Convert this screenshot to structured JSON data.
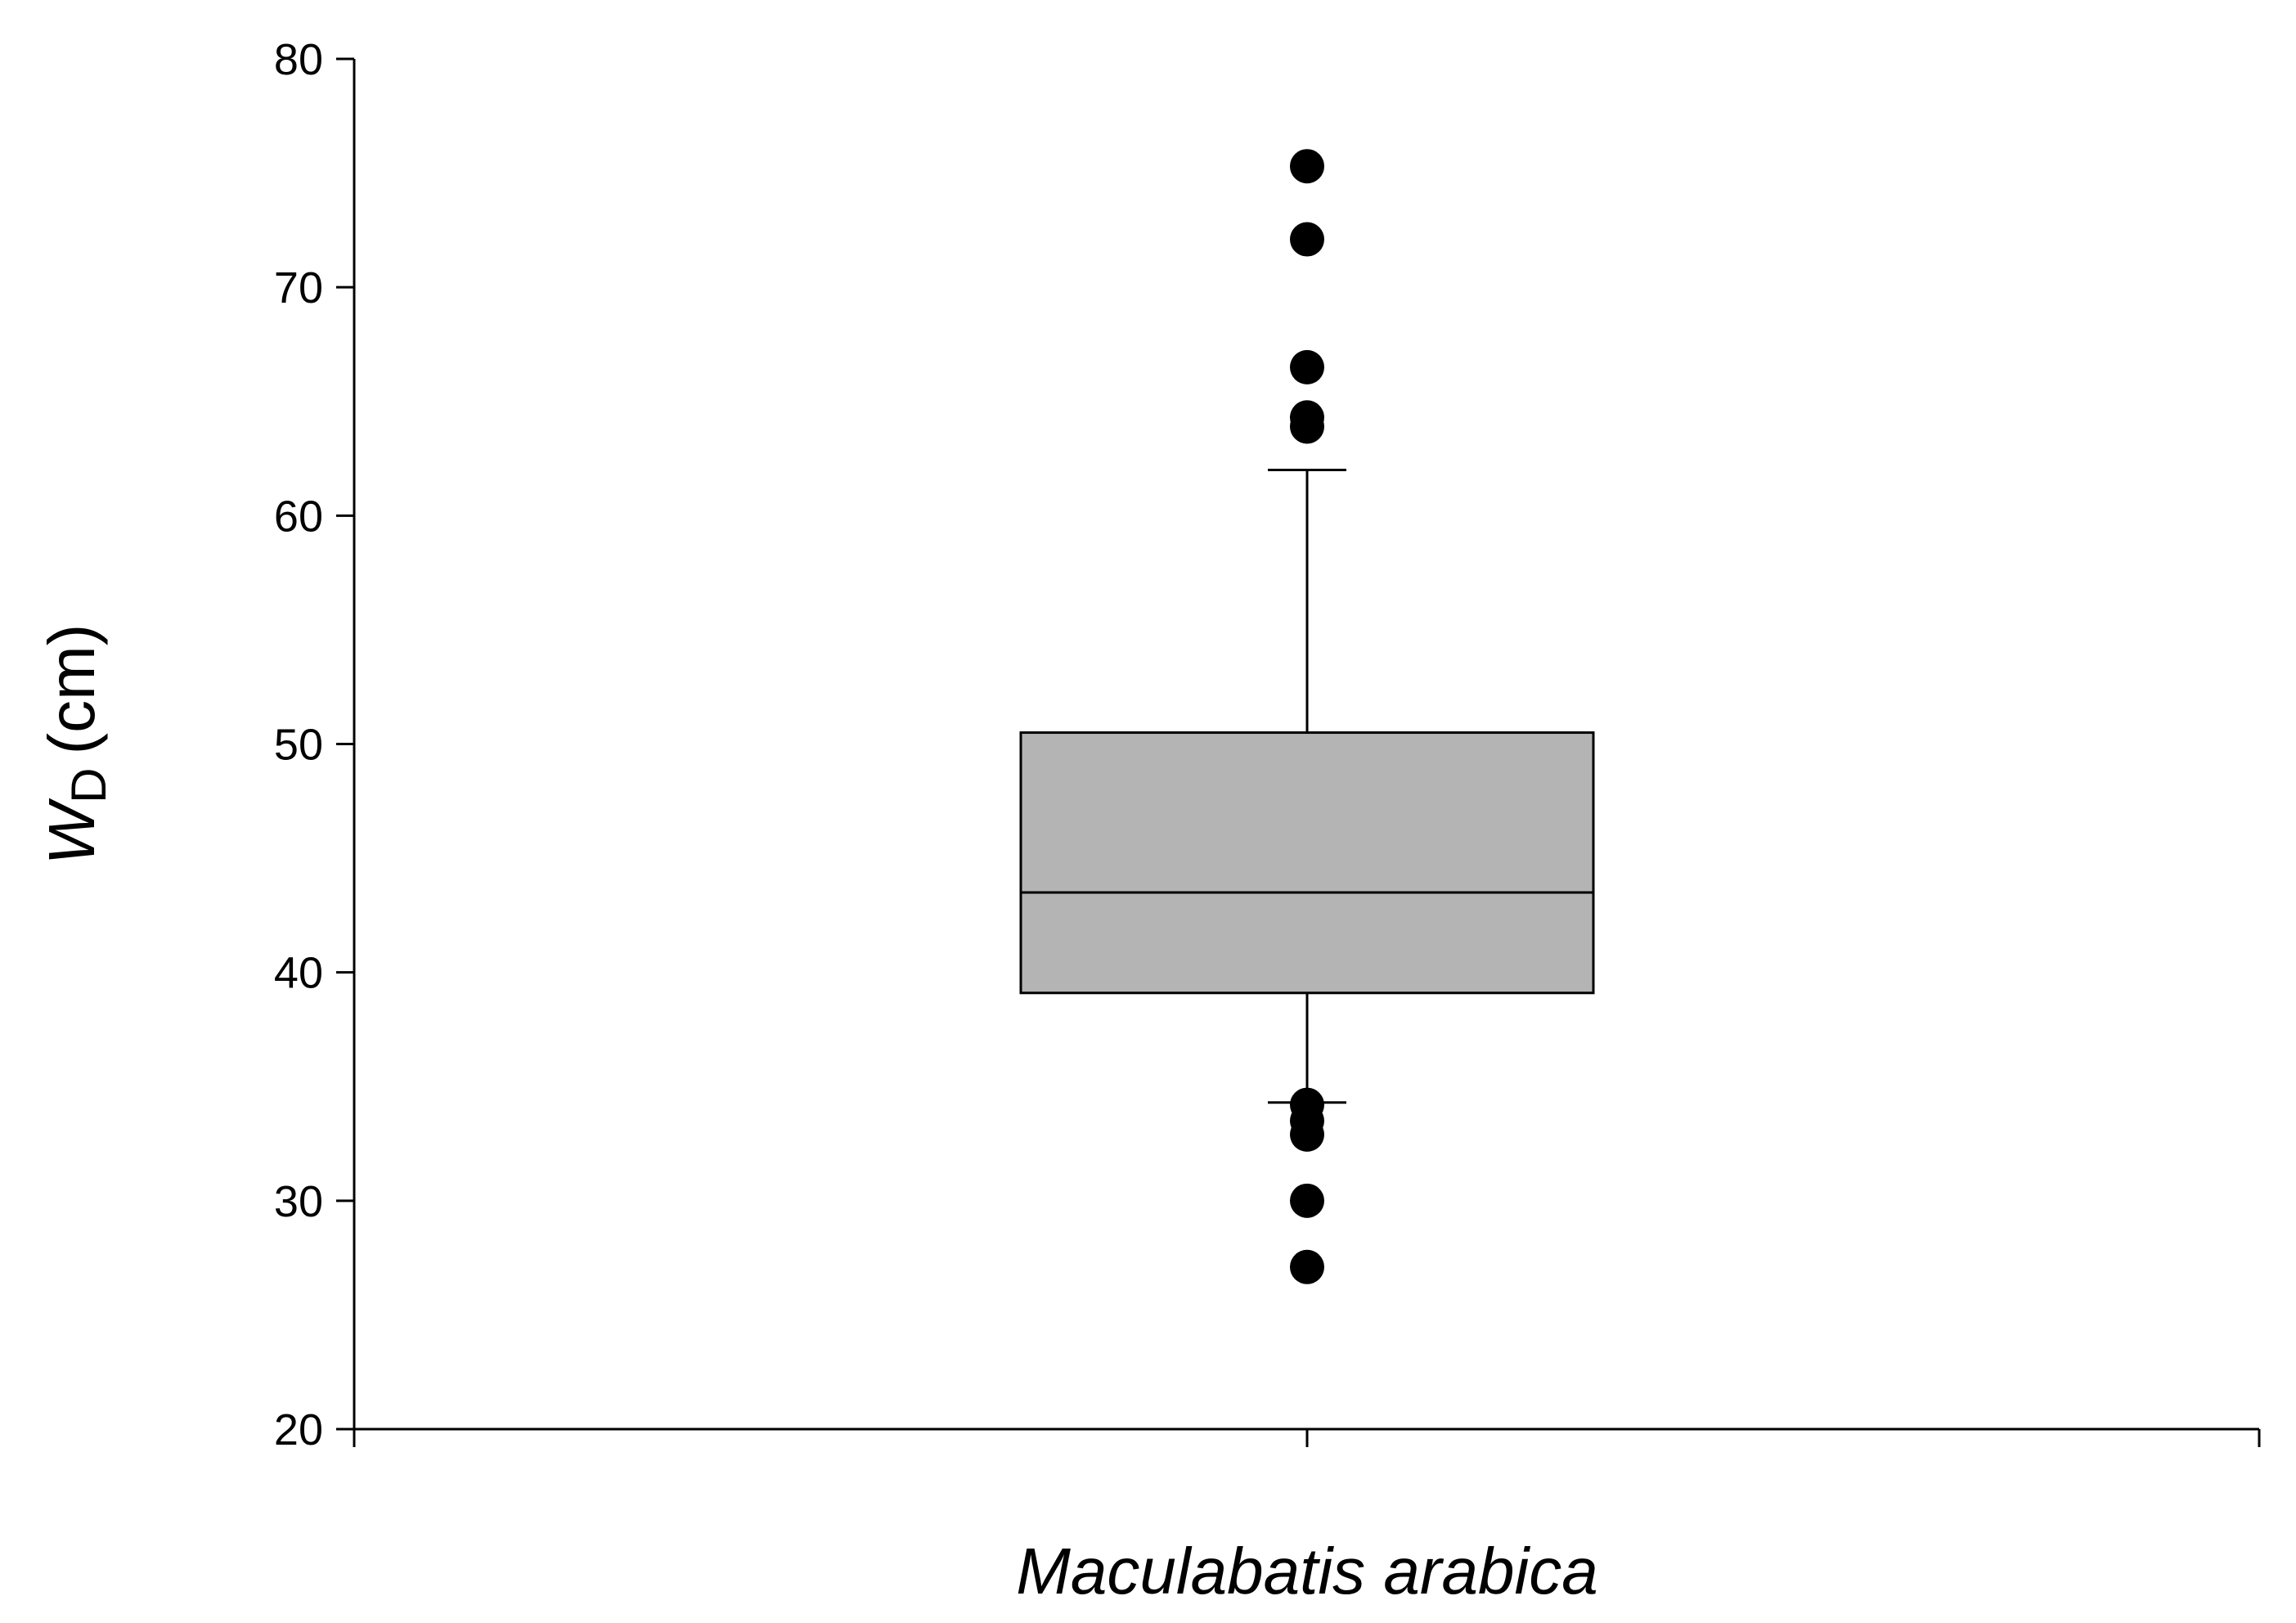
{
  "chart_data": {
    "type": "box",
    "category": "Maculabatis arabica",
    "xlabel": "Maculabatis arabica",
    "ylabel": {
      "symbol": "W",
      "subscript": "D",
      "unit": "(cm)"
    },
    "ylim": [
      20,
      80
    ],
    "yticks": [
      20,
      30,
      40,
      50,
      60,
      70,
      80
    ],
    "grid": false,
    "box": {
      "q1": 39.1,
      "median": 43.5,
      "q3": 50.5,
      "whisker_low": 34.3,
      "whisker_high": 62.0
    },
    "outliers": [
      75.3,
      72.1,
      66.5,
      64.3,
      63.9,
      34.2,
      33.5,
      32.9,
      30.0,
      27.1
    ],
    "colors": {
      "box_fill": "#b4b4b4",
      "outline": "#000000",
      "outlier": "#000000"
    }
  }
}
